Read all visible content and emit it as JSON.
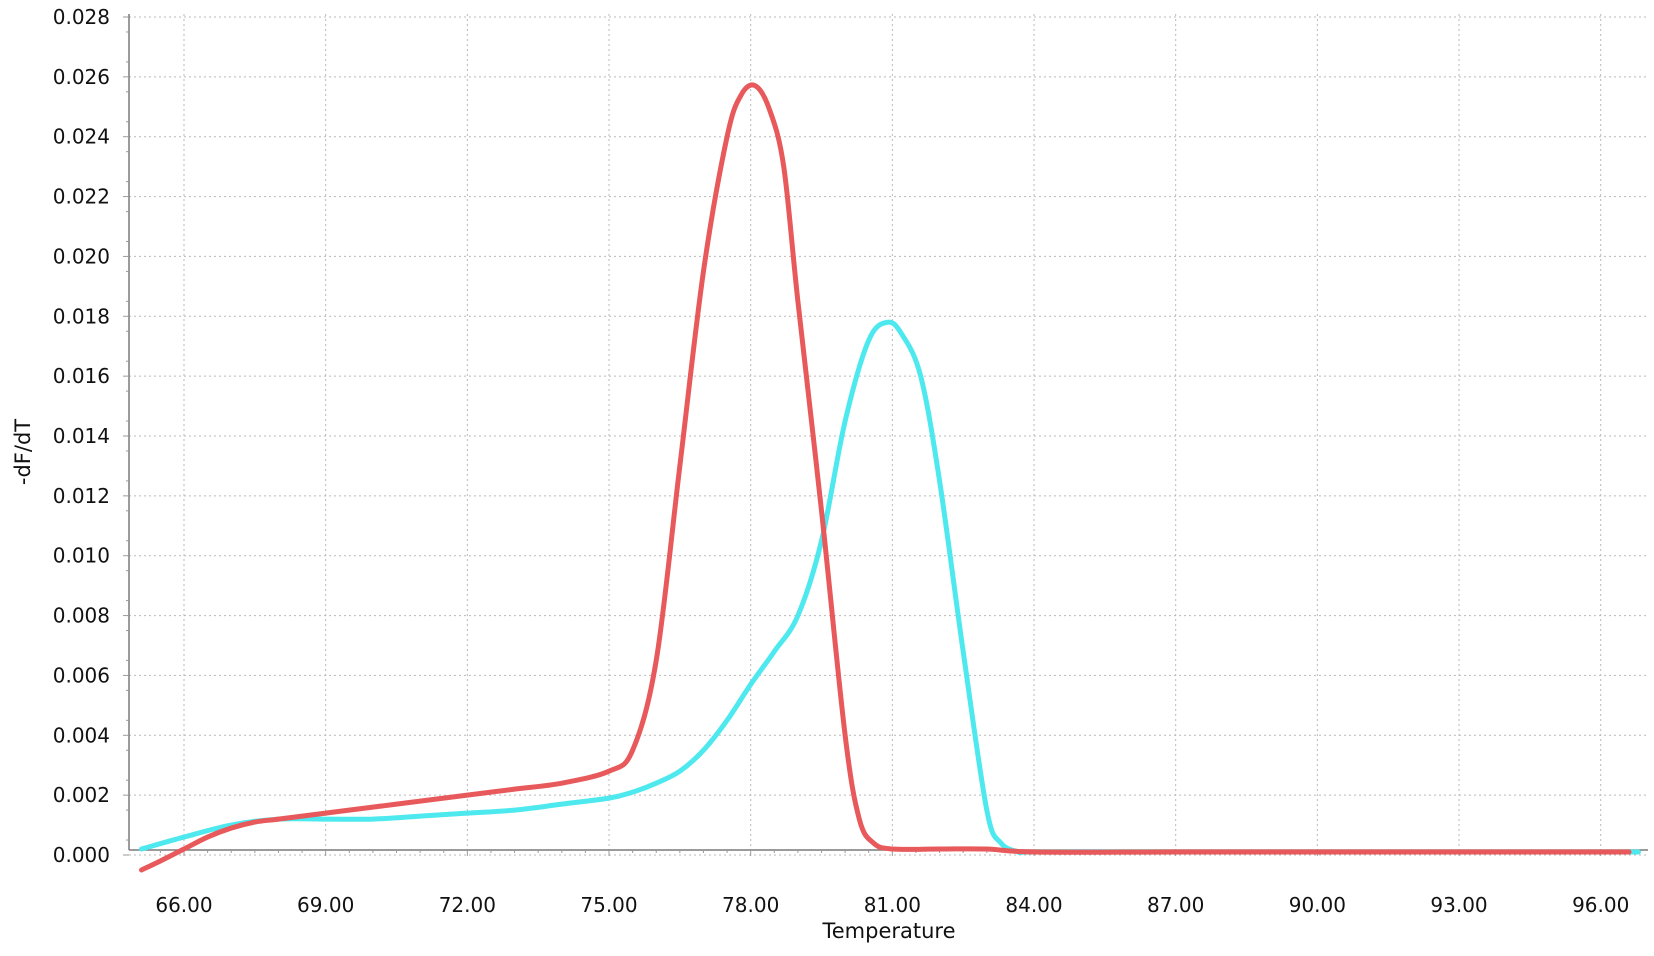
{
  "chart_data": {
    "type": "line",
    "xlabel": "Temperature",
    "ylabel": "-dF/dT",
    "xlim": [
      64.99,
      96.99
    ],
    "ylim": [
      0.0,
      0.028
    ],
    "x_ticks": [
      "66.00",
      "69.00",
      "72.00",
      "75.00",
      "78.00",
      "81.00",
      "84.00",
      "87.00",
      "90.00",
      "93.00",
      "96.00"
    ],
    "y_ticks": [
      "0.000",
      "0.002",
      "0.004",
      "0.006",
      "0.008",
      "0.010",
      "0.012",
      "0.014",
      "0.016",
      "0.018",
      "0.020",
      "0.022",
      "0.024",
      "0.026",
      "0.028"
    ],
    "grid": true,
    "series": [
      {
        "color": "#e8595b",
        "x": [
          65.1,
          65.5,
          66.0,
          66.5,
          67.0,
          67.5,
          68.0,
          69.0,
          70.0,
          71.0,
          72.0,
          73.0,
          74.0,
          75.0,
          75.5,
          76.0,
          76.5,
          77.0,
          77.5,
          77.8,
          78.1,
          78.4,
          78.7,
          79.0,
          79.5,
          80.0,
          80.3,
          80.6,
          81.0,
          82.0,
          83.0,
          84.0,
          87.0,
          90.0,
          93.0,
          96.0,
          96.6
        ],
        "y": [
          -0.0005,
          -0.0002,
          0.0002,
          0.0006,
          0.0009,
          0.0011,
          0.0012,
          0.0014,
          0.0016,
          0.0018,
          0.002,
          0.0022,
          0.0024,
          0.0028,
          0.0035,
          0.0065,
          0.013,
          0.0195,
          0.024,
          0.0254,
          0.0257,
          0.0249,
          0.023,
          0.0185,
          0.0115,
          0.004,
          0.0012,
          0.0004,
          0.0002,
          0.0002,
          0.0002,
          0.0001,
          0.0001,
          0.0001,
          0.0001,
          0.0001,
          0.0001
        ]
      },
      {
        "color": "#4de9ee",
        "x": [
          65.1,
          66.0,
          67.0,
          68.0,
          69.0,
          70.0,
          71.0,
          72.0,
          73.0,
          74.0,
          75.0,
          75.5,
          76.0,
          76.5,
          77.0,
          77.5,
          78.0,
          78.5,
          79.0,
          79.5,
          80.0,
          80.5,
          80.9,
          81.2,
          81.6,
          82.0,
          82.5,
          83.0,
          83.3,
          83.7,
          84.0,
          87.0,
          90.0,
          93.0,
          96.0,
          96.8
        ],
        "y": [
          0.0002,
          0.0006,
          0.001,
          0.0012,
          0.0012,
          0.0012,
          0.0013,
          0.0014,
          0.0015,
          0.0017,
          0.0019,
          0.0021,
          0.0024,
          0.0028,
          0.0035,
          0.0045,
          0.0057,
          0.0068,
          0.008,
          0.0105,
          0.0145,
          0.0172,
          0.0178,
          0.0174,
          0.016,
          0.0125,
          0.0068,
          0.0015,
          0.0004,
          0.0001,
          0.0001,
          0.0001,
          0.0001,
          0.0001,
          0.0001,
          0.0001
        ]
      }
    ]
  }
}
